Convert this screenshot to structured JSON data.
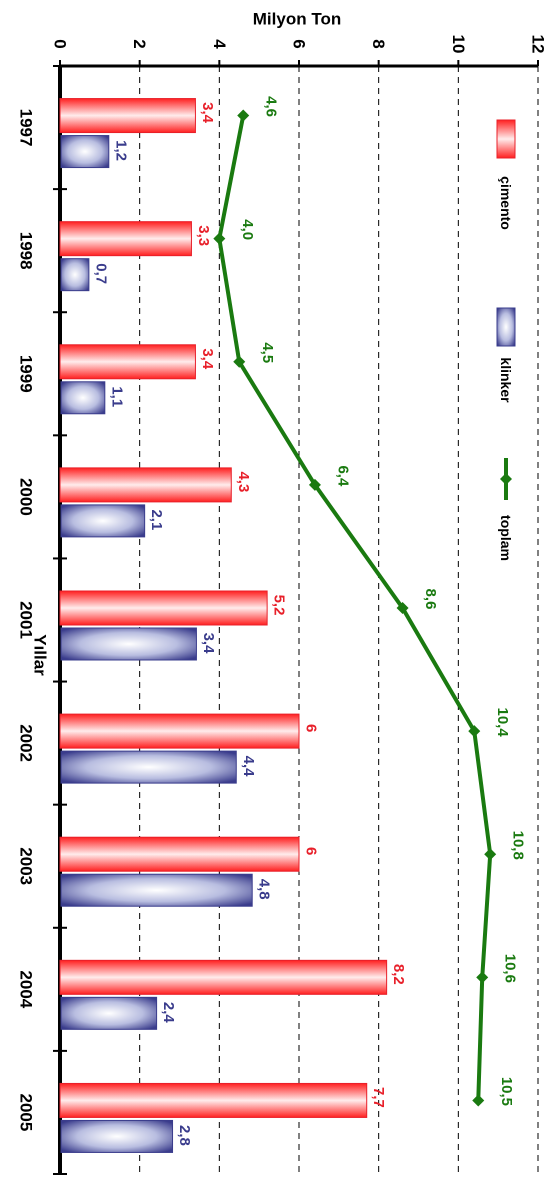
{
  "chart_data": {
    "type": "bar",
    "ylabel": "Milyon Ton",
    "xlabel": "Yıllar",
    "categories": [
      "1997",
      "1998",
      "1999",
      "2000",
      "2001",
      "2002",
      "2003",
      "2004",
      "2005"
    ],
    "ylim": [
      0,
      12
    ],
    "yticks": [
      "0",
      "2",
      "4",
      "6",
      "8",
      "10",
      "12"
    ],
    "grid": true,
    "legend_position": "right",
    "series": [
      {
        "name": "çimento",
        "kind": "bar",
        "color": "#e8202a",
        "values": [
          3.4,
          3.3,
          3.4,
          4.3,
          5.2,
          6,
          6,
          8.2,
          7.7
        ],
        "labels": [
          "3,4",
          "3,3",
          "3,4",
          "4,3",
          "5,2",
          "6",
          "6",
          "8,2",
          "7,7"
        ]
      },
      {
        "name": "klinker",
        "kind": "bar",
        "color": "#3a3c8c",
        "values": [
          1.2,
          0.7,
          1.1,
          2.1,
          3.4,
          4.4,
          4.8,
          2.4,
          2.8
        ],
        "labels": [
          "1,2",
          "0,7",
          "1,1",
          "2,1",
          "3,4",
          "4,4",
          "4,8",
          "2,4",
          "2,8"
        ]
      },
      {
        "name": "toplam",
        "kind": "line",
        "color": "#1a7a10",
        "values": [
          4.6,
          4.0,
          4.5,
          6.4,
          8.6,
          10.4,
          10.8,
          10.6,
          10.5
        ],
        "labels": [
          "4,6",
          "4,0",
          "4,5",
          "6,4",
          "8,6",
          "10,4",
          "10,8",
          "10,6",
          "10,5"
        ]
      }
    ]
  }
}
